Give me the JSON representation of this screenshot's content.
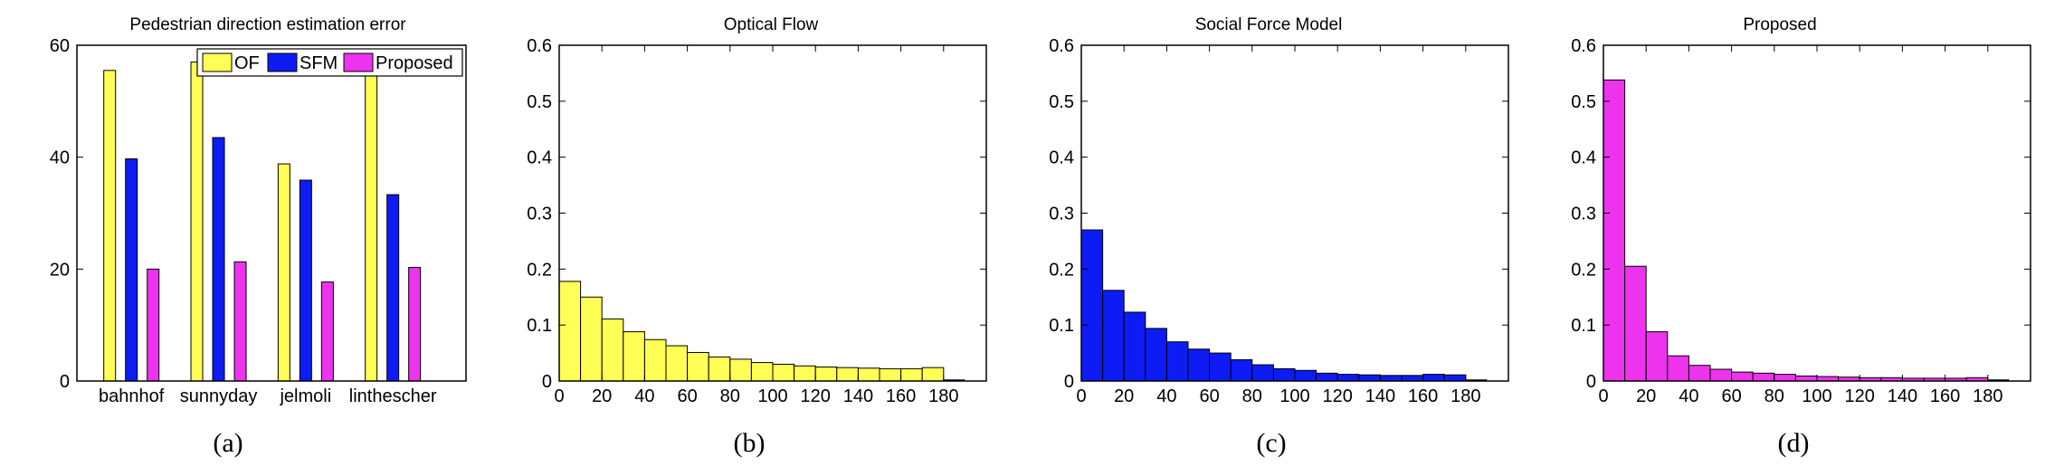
{
  "colors": {
    "of": "#ffff55",
    "sfm": "#0d1cf5",
    "proposed": "#ee33ee",
    "stroke": "#000000"
  },
  "captions": [
    "(a)",
    "(b)",
    "(c)",
    "(d)"
  ],
  "chart_data": [
    {
      "type": "bar",
      "title": "Pedestrian direction estimation error",
      "categories": [
        "bahnhof",
        "sunnyday",
        "jelmoli",
        "linthescher"
      ],
      "series": [
        {
          "name": "OF",
          "color": "#ffff55",
          "values": [
            55.5,
            57,
            38.8,
            55
          ]
        },
        {
          "name": "SFM",
          "color": "#0d1cf5",
          "values": [
            39.7,
            43.5,
            35.9,
            33.3
          ]
        },
        {
          "name": "Proposed",
          "color": "#ee33ee",
          "values": [
            20,
            21.3,
            17.7,
            20.3
          ]
        }
      ],
      "ylim": [
        0,
        60
      ],
      "yticks": [
        "0",
        "20",
        "40",
        "60"
      ],
      "legend": "top-right",
      "grid": false
    },
    {
      "type": "bar",
      "title": "Optical Flow",
      "color": "#ffff55",
      "bin_width": 10,
      "bin_centers": [
        5,
        15,
        25,
        35,
        45,
        55,
        65,
        75,
        85,
        95,
        105,
        115,
        125,
        135,
        145,
        155,
        165,
        175
      ],
      "values": [
        0.178,
        0.15,
        0.111,
        0.088,
        0.074,
        0.063,
        0.051,
        0.043,
        0.039,
        0.033,
        0.03,
        0.027,
        0.025,
        0.024,
        0.023,
        0.022,
        0.022,
        0.024
      ],
      "xlim": [
        0,
        200
      ],
      "ylim": [
        0,
        0.6
      ],
      "xticks": [
        "0",
        "20",
        "40",
        "60",
        "80",
        "100",
        "120",
        "140",
        "160",
        "180"
      ],
      "yticks": [
        "0",
        "0.1",
        "0.2",
        "0.3",
        "0.4",
        "0.5",
        "0.6"
      ],
      "grid": false
    },
    {
      "type": "bar",
      "title": "Social Force Model",
      "color": "#0d1cf5",
      "bin_width": 10,
      "bin_centers": [
        5,
        15,
        25,
        35,
        45,
        55,
        65,
        75,
        85,
        95,
        105,
        115,
        125,
        135,
        145,
        155,
        165,
        175
      ],
      "values": [
        0.27,
        0.162,
        0.123,
        0.094,
        0.07,
        0.057,
        0.05,
        0.038,
        0.029,
        0.022,
        0.019,
        0.014,
        0.012,
        0.011,
        0.01,
        0.01,
        0.012,
        0.011
      ],
      "xlim": [
        0,
        200
      ],
      "ylim": [
        0,
        0.6
      ],
      "xticks": [
        "0",
        "20",
        "40",
        "60",
        "80",
        "100",
        "120",
        "140",
        "160",
        "180"
      ],
      "yticks": [
        "0",
        "0.1",
        "0.2",
        "0.3",
        "0.4",
        "0.5",
        "0.6"
      ],
      "grid": false
    },
    {
      "type": "bar",
      "title": "Proposed",
      "color": "#ee33ee",
      "bin_width": 10,
      "bin_centers": [
        5,
        15,
        25,
        35,
        45,
        55,
        65,
        75,
        85,
        95,
        105,
        115,
        125,
        135,
        145,
        155,
        165,
        175
      ],
      "values": [
        0.538,
        0.205,
        0.088,
        0.045,
        0.028,
        0.021,
        0.016,
        0.014,
        0.012,
        0.009,
        0.008,
        0.007,
        0.006,
        0.006,
        0.005,
        0.005,
        0.005,
        0.006
      ],
      "xlim": [
        0,
        200
      ],
      "ylim": [
        0,
        0.6
      ],
      "xticks": [
        "0",
        "20",
        "40",
        "60",
        "80",
        "100",
        "120",
        "140",
        "160",
        "180"
      ],
      "yticks": [
        "0",
        "0.1",
        "0.2",
        "0.3",
        "0.4",
        "0.5",
        "0.6"
      ],
      "grid": false
    }
  ]
}
